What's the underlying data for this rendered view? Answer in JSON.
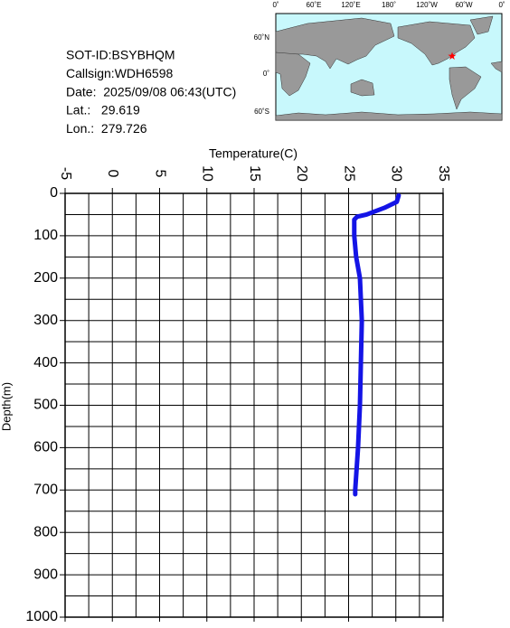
{
  "chart_data": {
    "type": "line",
    "x_label": "Temperature(C)",
    "y_label": "Depth(m)",
    "info": [
      "SOT-ID:BSYBHQM",
      "Callsign:WDH6598",
      "Date:  2025/09/08 06:43(UTC)",
      "Lat.:   29.619",
      "Lon.:  279.726"
    ],
    "map": {
      "lon_labels": [
        "0˚",
        "60˚E",
        "120˚E",
        "180˚",
        "120˚W",
        "60˚W",
        "0˚"
      ],
      "lat_labels": [
        "60˚N",
        "0˚",
        "60˚S"
      ]
    },
    "xlim": [
      -5,
      35
    ],
    "xticks": [
      -5,
      0,
      5,
      10,
      15,
      20,
      25,
      30,
      35
    ],
    "xminor": [
      -2.5,
      2.5,
      7.5,
      12.5,
      17.5,
      22.5,
      27.5,
      32.5
    ],
    "ylim": [
      0,
      1000
    ],
    "yticks": [
      0,
      100,
      200,
      300,
      400,
      500,
      600,
      700,
      800,
      900,
      1000
    ],
    "yminor": [
      50,
      150,
      250,
      350,
      450,
      550,
      650,
      750,
      850,
      950
    ],
    "grid": true,
    "series": [
      {
        "color": "#1414e6",
        "values": [
          30.3,
          30.1,
          28.8,
          26.9,
          25.9,
          25.6,
          25.6,
          25.8,
          26.2,
          26.4,
          26.3,
          26.2,
          26.0,
          25.7,
          25.7
        ],
        "depth": [
          5,
          20,
          34,
          50,
          55,
          62,
          100,
          150,
          200,
          300,
          400,
          500,
          600,
          700,
          710
        ]
      }
    ]
  }
}
